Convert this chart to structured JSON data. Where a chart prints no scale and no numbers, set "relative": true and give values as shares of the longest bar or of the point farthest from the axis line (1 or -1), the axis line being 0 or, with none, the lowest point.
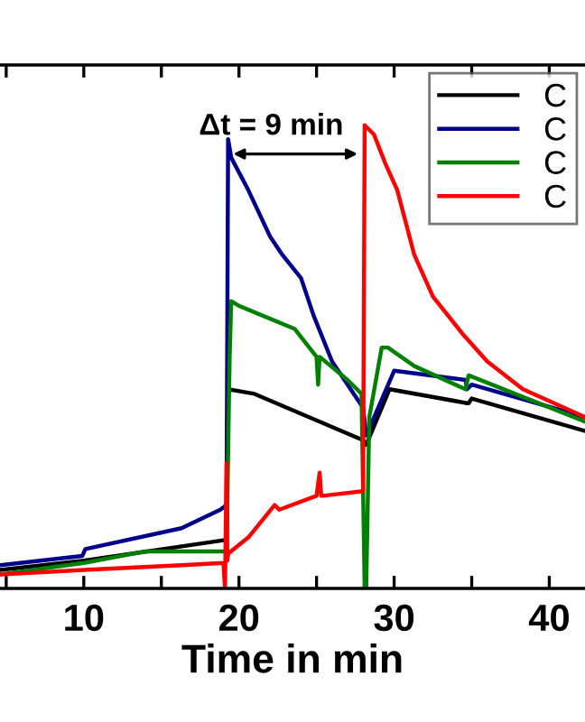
{
  "chart_data": {
    "type": "line",
    "relative": true,
    "xlabel": "Time in min",
    "xlim": [
      4.6,
      42.3
    ],
    "xticks": [
      {
        "value": 5,
        "label": null
      },
      10,
      {
        "value": 15,
        "label": null
      },
      20,
      {
        "value": 25,
        "label": null
      },
      30,
      {
        "value": 35,
        "label": null
      },
      40
    ],
    "legend": "top right",
    "grid": false,
    "marker": "none",
    "line_style": "solid",
    "tick_labels": "x",
    "annotations": [
      "Δt = 9 min"
    ],
    "series": [
      {
        "name": "C",
        "color": "#000000",
        "x": [
          4.6,
          10,
          19.2,
          19.3,
          21,
          28,
          28.2,
          29.7,
          34.7,
          34.8,
          35,
          42.3
        ],
        "values": [
          0.04,
          0.06,
          0.105,
          0.43,
          0.42,
          0.32,
          0.31,
          0.43,
          0.4,
          0.4,
          0.41,
          0.34
        ]
      },
      {
        "name": "C",
        "color": "#00008b",
        "x": [
          4.6,
          9.9,
          10.1,
          16.3,
          18.8,
          19.2,
          19.3,
          19.5,
          20.6,
          22,
          22.8,
          24,
          24.8,
          26,
          27.8,
          28,
          28.2,
          30,
          34.6,
          34.7,
          35,
          42.3
        ],
        "values": [
          0.05,
          0.07,
          0.085,
          0.13,
          0.17,
          0.18,
          0.97,
          0.93,
          0.86,
          0.76,
          0.72,
          0.67,
          0.59,
          0.49,
          0.4,
          0.39,
          0.33,
          0.47,
          0.45,
          0.43,
          0.44,
          0.37
        ]
      },
      {
        "name": "C",
        "color": "#008000",
        "x": [
          4.6,
          10,
          14,
          19.2,
          19.4,
          19.5,
          20,
          23.6,
          25,
          25.1,
          25.2,
          27,
          27.9,
          28.1,
          28.2,
          28.4,
          29.2,
          29.6,
          31.3,
          34.6,
          34.8,
          42.3
        ],
        "values": [
          0.03,
          0.055,
          0.08,
          0.08,
          0.5,
          0.62,
          0.61,
          0.56,
          0.5,
          0.44,
          0.5,
          0.45,
          0.42,
          0.0,
          0.0,
          0.37,
          0.52,
          0.52,
          0.48,
          0.43,
          0.46,
          0.36
        ]
      },
      {
        "name": "C",
        "color": "#ff0000",
        "x": [
          4.6,
          10,
          16.3,
          19.0,
          19.1,
          19.2,
          19.25,
          19.3,
          20.6,
          22.3,
          22.6,
          25,
          25.2,
          25.3,
          25.4,
          28,
          28.1,
          28.7,
          29.4,
          30.2,
          31.3,
          32.5,
          34.4,
          36,
          38.3,
          42.3
        ],
        "values": [
          0.03,
          0.04,
          0.05,
          0.055,
          0.0,
          0.27,
          0.06,
          0.075,
          0.11,
          0.18,
          0.17,
          0.2,
          0.25,
          0.2,
          0.2,
          0.21,
          1.0,
          0.98,
          0.92,
          0.86,
          0.72,
          0.63,
          0.55,
          0.49,
          0.43,
          0.37
        ]
      }
    ]
  }
}
